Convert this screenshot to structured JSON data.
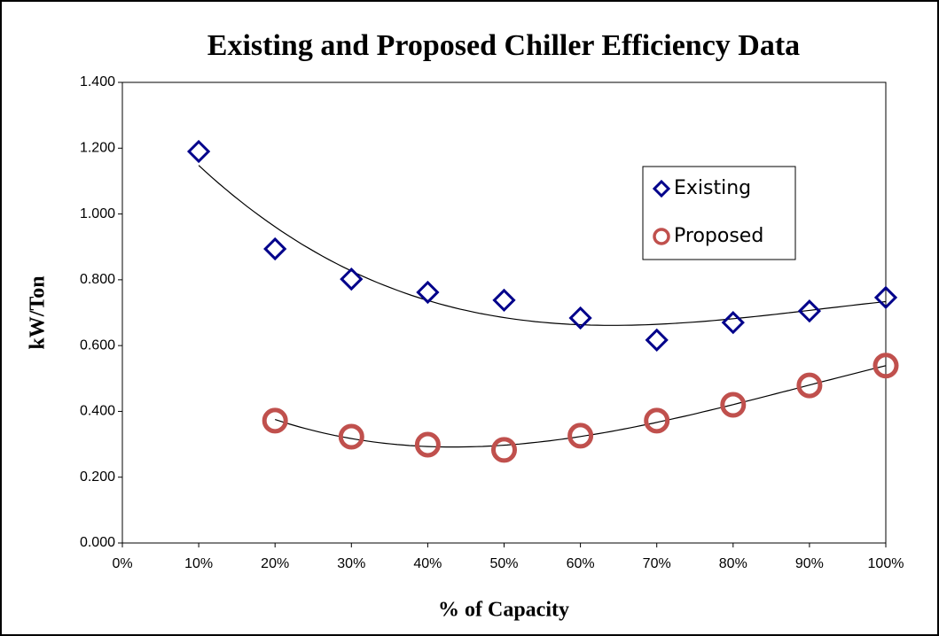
{
  "chart_data": {
    "type": "scatter",
    "title": "Existing and Proposed Chiller Efficiency Data",
    "x_label": "% of Capacity",
    "y_label": "kW/Ton",
    "xlim": [
      0,
      100
    ],
    "xticks": [
      {
        "value": 0,
        "label": "0%"
      },
      {
        "value": 10,
        "label": "10%"
      },
      {
        "value": 20,
        "label": "20%"
      },
      {
        "value": 30,
        "label": "30%"
      },
      {
        "value": 40,
        "label": "40%"
      },
      {
        "value": 50,
        "label": "50%"
      },
      {
        "value": 60,
        "label": "60%"
      },
      {
        "value": 70,
        "label": "70%"
      },
      {
        "value": 80,
        "label": "80%"
      },
      {
        "value": 90,
        "label": "90%"
      },
      {
        "value": 100,
        "label": "100%"
      }
    ],
    "ylim": [
      0,
      1.4
    ],
    "yticks": [
      {
        "value": 0,
        "label": "0.000"
      },
      {
        "value": 0.2,
        "label": "0.200"
      },
      {
        "value": 0.4,
        "label": "0.400"
      },
      {
        "value": 0.6,
        "label": "0.600"
      },
      {
        "value": 0.8,
        "label": "0.800"
      },
      {
        "value": 1.0,
        "label": "1.000"
      },
      {
        "value": 1.2,
        "label": "1.200"
      },
      {
        "value": 1.4,
        "label": "1.400"
      }
    ],
    "grid": false,
    "legend": "upper right",
    "trendline": "polynomial",
    "series": [
      {
        "name": "Existing",
        "color": "#00008b",
        "marker": "diamond",
        "x": [
          10,
          20,
          30,
          40,
          50,
          60,
          70,
          80,
          90,
          100
        ],
        "values": [
          1.19,
          0.894,
          0.802,
          0.762,
          0.738,
          0.684,
          0.617,
          0.67,
          0.705,
          0.746
        ]
      },
      {
        "name": "Proposed",
        "color": "#c0504d",
        "marker": "circle",
        "x": [
          20,
          30,
          40,
          50,
          60,
          70,
          80,
          90,
          100
        ],
        "values": [
          0.372,
          0.323,
          0.299,
          0.283,
          0.326,
          0.372,
          0.42,
          0.479,
          0.539
        ]
      }
    ]
  }
}
